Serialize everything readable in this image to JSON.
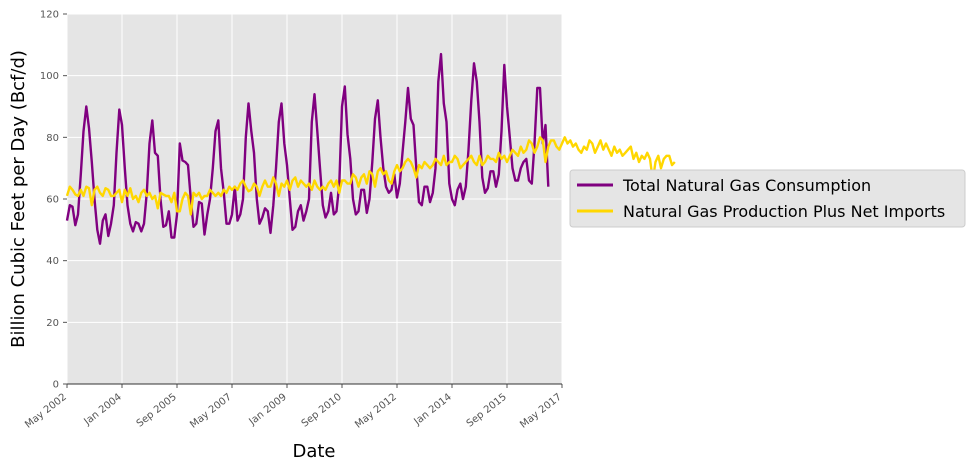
{
  "chart_data": {
    "type": "line",
    "title": "",
    "xlabel": "Date",
    "ylabel": "Billion Cubic Feet per Day (Bcf/d)",
    "ylim": [
      0,
      120
    ],
    "yticks": [
      0,
      20,
      40,
      60,
      80,
      100,
      120
    ],
    "xlim": [
      "2002-05",
      "2017-05"
    ],
    "xticks": [
      {
        "date": "2002-05",
        "label": "May 2002"
      },
      {
        "date": "2004-01",
        "label": "Jan 2004"
      },
      {
        "date": "2005-09",
        "label": "Sep 2005"
      },
      {
        "date": "2007-05",
        "label": "May 2007"
      },
      {
        "date": "2009-01",
        "label": "Jan 2009"
      },
      {
        "date": "2010-09",
        "label": "Sep 2010"
      },
      {
        "date": "2012-05",
        "label": "May 2012"
      },
      {
        "date": "2014-01",
        "label": "Jan 2014"
      },
      {
        "date": "2015-09",
        "label": "Sep 2015"
      },
      {
        "date": "2017-05",
        "label": "May 2017"
      }
    ],
    "grid": true,
    "background": "#e5e5e5",
    "legend_position": "right-outside",
    "series": [
      {
        "name": "Total Natural Gas Consumption",
        "color": "#800080",
        "start": "2002-05",
        "frequency": "monthly",
        "values": [
          53,
          58,
          57.5,
          51.5,
          55,
          68,
          82,
          90,
          83,
          72,
          60,
          50,
          45.5,
          53,
          55,
          48,
          52,
          58,
          75,
          89,
          84,
          70,
          58,
          52,
          49.5,
          52.5,
          52,
          49.5,
          52,
          62,
          78,
          85.5,
          75,
          74,
          60,
          51,
          51.5,
          56,
          47.5,
          47.5,
          55,
          78,
          72.5,
          72,
          71,
          60,
          51,
          52,
          59,
          58.5,
          48.5,
          55,
          60,
          70,
          82,
          85.5,
          70,
          62,
          52,
          52,
          55,
          64,
          53,
          55,
          60,
          80,
          91,
          82,
          75,
          60,
          52,
          54,
          57,
          56,
          49,
          58,
          70,
          85,
          91,
          78,
          71,
          60,
          50,
          51,
          56,
          58,
          53,
          56,
          60,
          85,
          94,
          82,
          70,
          58,
          54,
          56,
          62,
          55,
          56,
          65,
          90,
          96.5,
          81,
          73,
          60,
          55,
          56,
          63,
          63,
          55.5,
          60,
          72,
          86,
          92,
          80,
          70,
          64,
          62,
          63,
          68,
          60.5,
          65,
          75,
          85,
          96,
          86,
          84,
          70,
          59,
          58,
          64,
          64,
          59,
          62,
          70,
          98,
          107,
          91,
          85,
          65,
          60,
          58,
          63,
          65,
          60,
          64,
          76,
          92,
          104,
          98,
          85,
          67,
          62,
          63.5,
          69,
          69,
          64,
          68,
          82,
          103.5,
          90,
          80,
          70,
          66,
          66,
          70,
          72,
          73,
          66,
          65,
          78,
          96,
          96,
          78,
          84,
          64
        ]
      },
      {
        "name": "Natural Gas Production Plus Net Imports",
        "color": "#ffd700",
        "start": "2002-05",
        "frequency": "monthly",
        "values": [
          61,
          64,
          63,
          61.5,
          61,
          63,
          61,
          64,
          63.5,
          58,
          63,
          64,
          62,
          61,
          63.5,
          63,
          61,
          61,
          62,
          63,
          59,
          63,
          61,
          63.5,
          60,
          61,
          59,
          62,
          63,
          61,
          62,
          60,
          61,
          57,
          62,
          61.5,
          61,
          61,
          59,
          62,
          56,
          56,
          60,
          62,
          61,
          55,
          62,
          61,
          62,
          60,
          61,
          61,
          63,
          62,
          61,
          62,
          61,
          63,
          62,
          64,
          63,
          64,
          63,
          65,
          66,
          64,
          62.5,
          63,
          65,
          64,
          61,
          64,
          66,
          64,
          64,
          67,
          65,
          61,
          65,
          64,
          66,
          63,
          66,
          67,
          64,
          66,
          65,
          64,
          65,
          63,
          66,
          64,
          63,
          64,
          63,
          65,
          66,
          64,
          66,
          62,
          66,
          66,
          65,
          65,
          68,
          67,
          64,
          67,
          68,
          65,
          69,
          68,
          64,
          69,
          70,
          68,
          69,
          66,
          65,
          69,
          71,
          69,
          70,
          72,
          73,
          72,
          70,
          67,
          71,
          70,
          72,
          71,
          70,
          71,
          73,
          72,
          71,
          74,
          71,
          72,
          72,
          74,
          73,
          70,
          71,
          72,
          73,
          74,
          72,
          71,
          74,
          71,
          72,
          74,
          73,
          73,
          72,
          75,
          73,
          74,
          72,
          74,
          76,
          75,
          74,
          77,
          75,
          76,
          79,
          78,
          75,
          77,
          80,
          79,
          72,
          77,
          79,
          79,
          77,
          76,
          78,
          80,
          78,
          79,
          77,
          78,
          76,
          75,
          77,
          76,
          79,
          78,
          75,
          77,
          79,
          76,
          78,
          76,
          74,
          77,
          75,
          76,
          74,
          75,
          76,
          77,
          73,
          75,
          72,
          74,
          73,
          75,
          73,
          66,
          72,
          74,
          70,
          73,
          74,
          74,
          71,
          72
        ]
      }
    ]
  }
}
